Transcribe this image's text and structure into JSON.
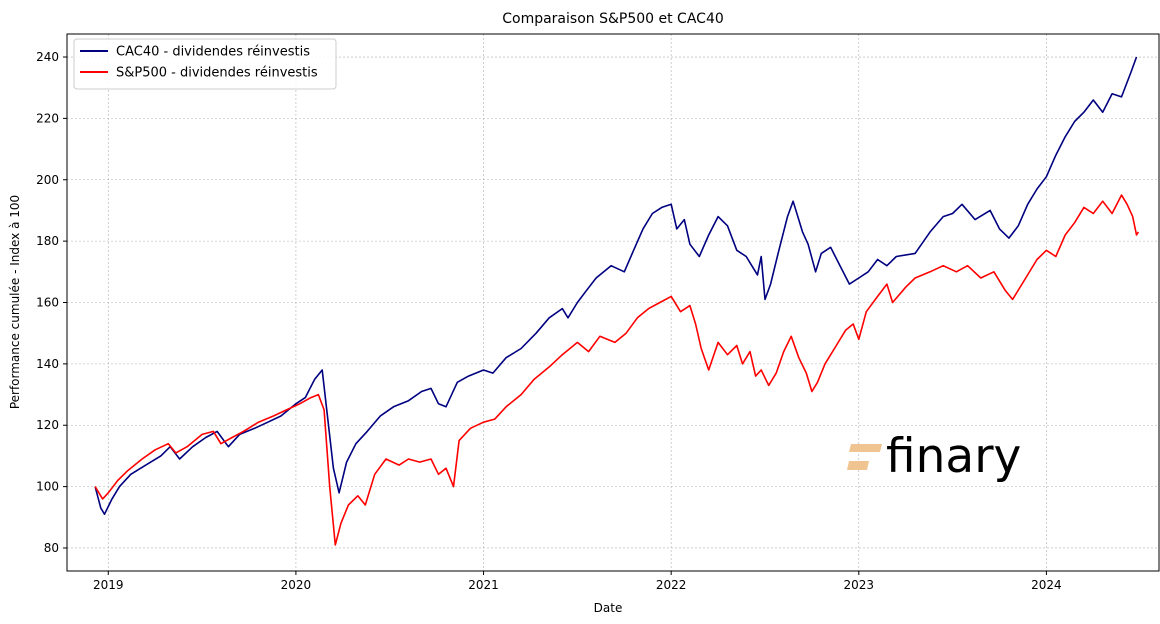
{
  "chart_data": {
    "type": "line",
    "title": "Comparaison S&P500 et CAC40",
    "xlabel": "Date",
    "ylabel": "Performance cumulée - Index à 100",
    "xlim": [
      2018.78,
      2024.6
    ],
    "ylim": [
      72.5,
      247.5
    ],
    "x_ticks": [
      2019,
      2020,
      2021,
      2022,
      2023,
      2024
    ],
    "x_tick_labels": [
      "2019",
      "2020",
      "2021",
      "2022",
      "2023",
      "2024"
    ],
    "y_ticks": [
      80,
      100,
      120,
      140,
      160,
      180,
      200,
      220,
      240
    ],
    "y_tick_labels": [
      "80",
      "100",
      "120",
      "140",
      "160",
      "180",
      "200",
      "220",
      "240"
    ],
    "grid": true,
    "legend_position": "top-left",
    "watermark": "finary",
    "series": [
      {
        "name": "CAC40 - dividendes réinvestis",
        "color": "#000080",
        "points": [
          [
            2018.93,
            100
          ],
          [
            2018.96,
            93
          ],
          [
            2018.98,
            91
          ],
          [
            2019.02,
            96
          ],
          [
            2019.06,
            100
          ],
          [
            2019.12,
            104
          ],
          [
            2019.2,
            107
          ],
          [
            2019.28,
            110
          ],
          [
            2019.33,
            113
          ],
          [
            2019.38,
            109
          ],
          [
            2019.45,
            113
          ],
          [
            2019.52,
            116
          ],
          [
            2019.58,
            118
          ],
          [
            2019.64,
            113
          ],
          [
            2019.7,
            117
          ],
          [
            2019.78,
            119
          ],
          [
            2019.85,
            121
          ],
          [
            2019.92,
            123
          ],
          [
            2020.0,
            127
          ],
          [
            2020.05,
            129
          ],
          [
            2020.1,
            135
          ],
          [
            2020.14,
            138
          ],
          [
            2020.17,
            122
          ],
          [
            2020.2,
            106
          ],
          [
            2020.23,
            98
          ],
          [
            2020.27,
            108
          ],
          [
            2020.32,
            114
          ],
          [
            2020.38,
            118
          ],
          [
            2020.45,
            123
          ],
          [
            2020.52,
            126
          ],
          [
            2020.6,
            128
          ],
          [
            2020.67,
            131
          ],
          [
            2020.72,
            132
          ],
          [
            2020.76,
            127
          ],
          [
            2020.8,
            126
          ],
          [
            2020.86,
            134
          ],
          [
            2020.92,
            136
          ],
          [
            2021.0,
            138
          ],
          [
            2021.05,
            137
          ],
          [
            2021.12,
            142
          ],
          [
            2021.2,
            145
          ],
          [
            2021.28,
            150
          ],
          [
            2021.35,
            155
          ],
          [
            2021.42,
            158
          ],
          [
            2021.45,
            155
          ],
          [
            2021.5,
            160
          ],
          [
            2021.55,
            164
          ],
          [
            2021.6,
            168
          ],
          [
            2021.68,
            172
          ],
          [
            2021.75,
            170
          ],
          [
            2021.8,
            177
          ],
          [
            2021.85,
            184
          ],
          [
            2021.9,
            189
          ],
          [
            2021.95,
            191
          ],
          [
            2022.0,
            192
          ],
          [
            2022.03,
            184
          ],
          [
            2022.07,
            187
          ],
          [
            2022.1,
            179
          ],
          [
            2022.15,
            175
          ],
          [
            2022.2,
            182
          ],
          [
            2022.25,
            188
          ],
          [
            2022.3,
            185
          ],
          [
            2022.35,
            177
          ],
          [
            2022.4,
            175
          ],
          [
            2022.43,
            172
          ],
          [
            2022.46,
            169
          ],
          [
            2022.48,
            175
          ],
          [
            2022.5,
            161
          ],
          [
            2022.53,
            166
          ],
          [
            2022.57,
            176
          ],
          [
            2022.62,
            188
          ],
          [
            2022.65,
            193
          ],
          [
            2022.7,
            183
          ],
          [
            2022.73,
            179
          ],
          [
            2022.77,
            170
          ],
          [
            2022.8,
            176
          ],
          [
            2022.85,
            178
          ],
          [
            2022.9,
            172
          ],
          [
            2022.95,
            166
          ],
          [
            2023.0,
            168
          ],
          [
            2023.05,
            170
          ],
          [
            2023.1,
            174
          ],
          [
            2023.15,
            172
          ],
          [
            2023.2,
            175
          ],
          [
            2023.3,
            176
          ],
          [
            2023.38,
            183
          ],
          [
            2023.45,
            188
          ],
          [
            2023.5,
            189
          ],
          [
            2023.55,
            192
          ],
          [
            2023.62,
            187
          ],
          [
            2023.7,
            190
          ],
          [
            2023.75,
            184
          ],
          [
            2023.8,
            181
          ],
          [
            2023.85,
            185
          ],
          [
            2023.9,
            192
          ],
          [
            2023.95,
            197
          ],
          [
            2024.0,
            201
          ],
          [
            2024.05,
            208
          ],
          [
            2024.1,
            214
          ],
          [
            2024.15,
            219
          ],
          [
            2024.2,
            222
          ],
          [
            2024.25,
            226
          ],
          [
            2024.3,
            222
          ],
          [
            2024.35,
            228
          ],
          [
            2024.4,
            227
          ],
          [
            2024.45,
            235
          ],
          [
            2024.48,
            240
          ]
        ]
      },
      {
        "name": "S&P500 - dividendes réinvestis",
        "color": "#ff0000",
        "points": [
          [
            2018.93,
            100
          ],
          [
            2018.97,
            96
          ],
          [
            2019.0,
            98
          ],
          [
            2019.05,
            102
          ],
          [
            2019.1,
            105
          ],
          [
            2019.18,
            109
          ],
          [
            2019.25,
            112
          ],
          [
            2019.32,
            114
          ],
          [
            2019.36,
            111
          ],
          [
            2019.42,
            113
          ],
          [
            2019.5,
            117
          ],
          [
            2019.56,
            118
          ],
          [
            2019.6,
            114
          ],
          [
            2019.66,
            116
          ],
          [
            2019.72,
            118
          ],
          [
            2019.8,
            121
          ],
          [
            2019.88,
            123
          ],
          [
            2019.95,
            125
          ],
          [
            2020.02,
            127
          ],
          [
            2020.08,
            129
          ],
          [
            2020.12,
            130
          ],
          [
            2020.15,
            125
          ],
          [
            2020.18,
            100
          ],
          [
            2020.21,
            81
          ],
          [
            2020.24,
            88
          ],
          [
            2020.28,
            94
          ],
          [
            2020.33,
            97
          ],
          [
            2020.37,
            94
          ],
          [
            2020.42,
            104
          ],
          [
            2020.48,
            109
          ],
          [
            2020.55,
            107
          ],
          [
            2020.6,
            109
          ],
          [
            2020.66,
            108
          ],
          [
            2020.72,
            109
          ],
          [
            2020.76,
            104
          ],
          [
            2020.8,
            106
          ],
          [
            2020.84,
            100
          ],
          [
            2020.87,
            115
          ],
          [
            2020.93,
            119
          ],
          [
            2021.0,
            121
          ],
          [
            2021.06,
            122
          ],
          [
            2021.12,
            126
          ],
          [
            2021.2,
            130
          ],
          [
            2021.27,
            135
          ],
          [
            2021.35,
            139
          ],
          [
            2021.42,
            143
          ],
          [
            2021.5,
            147
          ],
          [
            2021.56,
            144
          ],
          [
            2021.62,
            149
          ],
          [
            2021.7,
            147
          ],
          [
            2021.76,
            150
          ],
          [
            2021.82,
            155
          ],
          [
            2021.88,
            158
          ],
          [
            2021.94,
            160
          ],
          [
            2022.0,
            162
          ],
          [
            2022.05,
            157
          ],
          [
            2022.1,
            159
          ],
          [
            2022.13,
            153
          ],
          [
            2022.16,
            145
          ],
          [
            2022.2,
            138
          ],
          [
            2022.25,
            147
          ],
          [
            2022.3,
            143
          ],
          [
            2022.35,
            146
          ],
          [
            2022.38,
            140
          ],
          [
            2022.42,
            144
          ],
          [
            2022.45,
            136
          ],
          [
            2022.48,
            138
          ],
          [
            2022.52,
            133
          ],
          [
            2022.56,
            137
          ],
          [
            2022.6,
            144
          ],
          [
            2022.64,
            149
          ],
          [
            2022.68,
            142
          ],
          [
            2022.72,
            137
          ],
          [
            2022.75,
            131
          ],
          [
            2022.78,
            134
          ],
          [
            2022.82,
            140
          ],
          [
            2022.88,
            146
          ],
          [
            2022.93,
            151
          ],
          [
            2022.97,
            153
          ],
          [
            2023.0,
            148
          ],
          [
            2023.04,
            157
          ],
          [
            2023.1,
            162
          ],
          [
            2023.15,
            166
          ],
          [
            2023.18,
            160
          ],
          [
            2023.25,
            165
          ],
          [
            2023.3,
            168
          ],
          [
            2023.38,
            170
          ],
          [
            2023.45,
            172
          ],
          [
            2023.52,
            170
          ],
          [
            2023.58,
            172
          ],
          [
            2023.65,
            168
          ],
          [
            2023.72,
            170
          ],
          [
            2023.78,
            164
          ],
          [
            2023.82,
            161
          ],
          [
            2023.88,
            167
          ],
          [
            2023.95,
            174
          ],
          [
            2024.0,
            177
          ],
          [
            2024.05,
            175
          ],
          [
            2024.1,
            182
          ],
          [
            2024.15,
            186
          ],
          [
            2024.2,
            191
          ],
          [
            2024.25,
            189
          ],
          [
            2024.3,
            193
          ],
          [
            2024.35,
            189
          ],
          [
            2024.4,
            195
          ],
          [
            2024.43,
            192
          ],
          [
            2024.46,
            188
          ],
          [
            2024.48,
            182
          ],
          [
            2024.49,
            183
          ]
        ]
      }
    ]
  }
}
